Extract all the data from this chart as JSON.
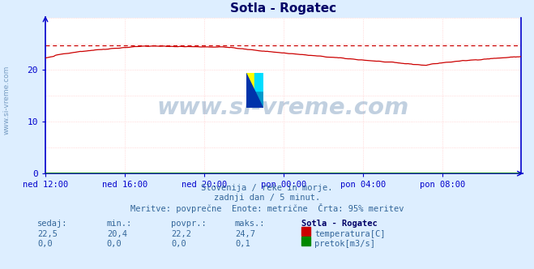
{
  "title": "Sotla - Rogatec",
  "title_color": "#000066",
  "bg_color": "#ddeeff",
  "plot_bg_color": "#ffffff",
  "grid_color": "#ffaaaa",
  "grid_dot_color": "#ffcccc",
  "xticklabels": [
    "ned 12:00",
    "ned 16:00",
    "ned 20:00",
    "pon 00:00",
    "pon 04:00",
    "pon 08:00"
  ],
  "xtick_positions": [
    0,
    48,
    96,
    144,
    192,
    240
  ],
  "ylim": [
    0,
    30
  ],
  "yticks": [
    0,
    10,
    20
  ],
  "axis_color": "#0000cc",
  "temp_color": "#cc0000",
  "flow_color": "#008800",
  "dashed_line_value": 24.7,
  "dashed_color": "#cc0000",
  "watermark_text": "www.si-vreme.com",
  "watermark_color": "#336699",
  "watermark_alpha": 0.3,
  "subtitle1": "Slovenija / reke in morje.",
  "subtitle2": "zadnji dan / 5 minut.",
  "subtitle3": "Meritve: povprečne  Enote: metrične  Črta: 95% meritev",
  "subtitle_color": "#336699",
  "table_header": [
    "sedaj:",
    "min.:",
    "povpr.:",
    "maks.:",
    "Sotla - Rogatec"
  ],
  "table_row1": [
    "22,5",
    "20,4",
    "22,2",
    "24,7",
    "temperatura[C]"
  ],
  "table_row2": [
    "0,0",
    "0,0",
    "0,0",
    "0,1",
    "pretok[m3/s]"
  ],
  "table_color": "#336699",
  "table_bold_color": "#000066",
  "n_points": 288,
  "side_label": "www.si-vreme.com",
  "side_label_color": "#336699"
}
